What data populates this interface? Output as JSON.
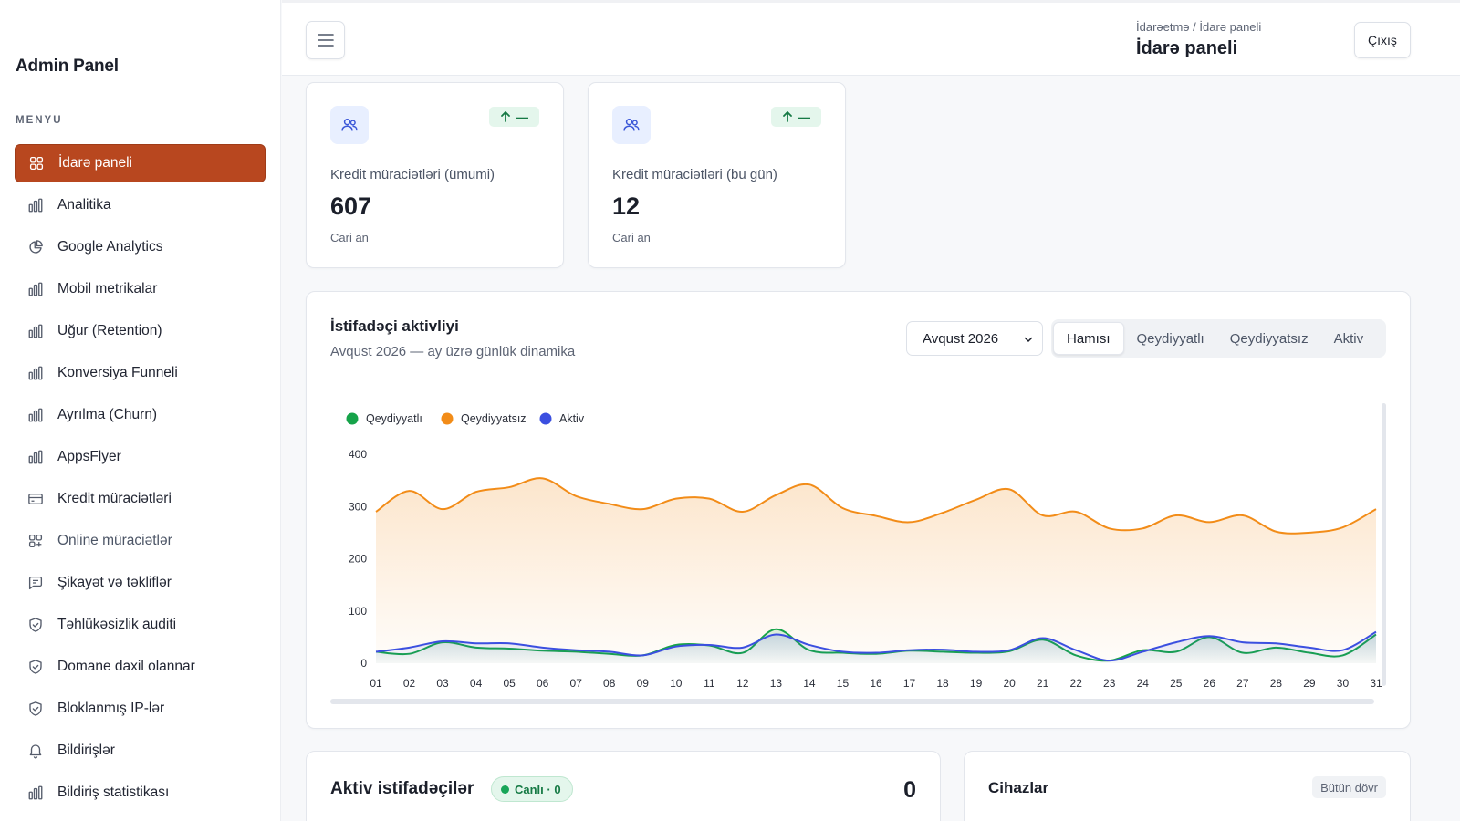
{
  "sidebar": {
    "brand": "Admin Panel",
    "menu_title": "MENYU",
    "items": [
      {
        "label": "İdarə paneli",
        "icon": "grid-icon"
      },
      {
        "label": "Analitika",
        "icon": "bar-chart-icon"
      },
      {
        "label": "Google Analytics",
        "icon": "pie-chart-icon"
      },
      {
        "label": "Mobil metrikalar",
        "icon": "bar-chart-icon"
      },
      {
        "label": "Uğur (Retention)",
        "icon": "bar-chart-icon"
      },
      {
        "label": "Konversiya Funneli",
        "icon": "bar-chart-icon"
      },
      {
        "label": "Ayrılma (Churn)",
        "icon": "bar-chart-icon"
      },
      {
        "label": "AppsFlyer",
        "icon": "bar-chart-icon"
      },
      {
        "label": "Kredit müraciətləri",
        "icon": "credit-card-icon"
      },
      {
        "label": "Online müraciətlər",
        "icon": "grid-plus-icon"
      },
      {
        "label": "Şikayət və təkliflər",
        "icon": "message-icon"
      },
      {
        "label": "Təhlükəsizlik auditi",
        "icon": "shield-check-icon"
      },
      {
        "label": "Domane daxil olannar",
        "icon": "shield-check-icon"
      },
      {
        "label": "Bloklanmış IP-lər",
        "icon": "shield-check-icon"
      },
      {
        "label": "Bildirişlər",
        "icon": "bell-icon"
      },
      {
        "label": "Bildiriş statistikası",
        "icon": "bar-chart-icon"
      }
    ]
  },
  "header": {
    "breadcrumb": "İdarəetmə / İdarə paneli",
    "title": "İdarə paneli",
    "logout_label": "Çıxış"
  },
  "stats": [
    {
      "label": "Kredit müraciətləri (ümumi)",
      "value": "607",
      "sub": "Cari an",
      "trend": "—"
    },
    {
      "label": "Kredit müraciətləri (bu gün)",
      "value": "12",
      "sub": "Cari an",
      "trend": "—"
    }
  ],
  "activity": {
    "title": "İstifadəçi aktivliyi",
    "subtitle": "Avqust 2026 — ay üzrə günlük dinamika",
    "month_value": "Avqust 2026",
    "segments": [
      "Hamısı",
      "Qeydiyyatlı",
      "Qeydiyyatsız",
      "Aktiv"
    ],
    "active_segment": 0
  },
  "chart_data": {
    "type": "area",
    "x": [
      "01",
      "02",
      "03",
      "04",
      "05",
      "06",
      "07",
      "08",
      "09",
      "10",
      "11",
      "12",
      "13",
      "14",
      "15",
      "16",
      "17",
      "18",
      "19",
      "20",
      "21",
      "22",
      "23",
      "24",
      "25",
      "26",
      "27",
      "28",
      "29",
      "30",
      "31"
    ],
    "ylim": [
      0,
      400
    ],
    "yticks": [
      0,
      100,
      200,
      300,
      400
    ],
    "legend_position": "top-left",
    "series": [
      {
        "name": "Qeydiyyatlı",
        "color": "#16a34a",
        "values": [
          22,
          18,
          40,
          30,
          28,
          24,
          22,
          18,
          15,
          35,
          34,
          20,
          65,
          25,
          20,
          18,
          24,
          22,
          20,
          23,
          45,
          15,
          5,
          25,
          22,
          50,
          20,
          30,
          20,
          15,
          55
        ]
      },
      {
        "name": "Qeydiyyatsız",
        "color": "#f28c18",
        "values": [
          290,
          330,
          295,
          328,
          337,
          354,
          320,
          305,
          295,
          315,
          315,
          290,
          322,
          342,
          297,
          282,
          270,
          288,
          313,
          333,
          283,
          290,
          258,
          258,
          283,
          270,
          283,
          252,
          250,
          260,
          295
        ]
      },
      {
        "name": "Aktiv",
        "color": "#3b4fe0",
        "values": [
          22,
          30,
          42,
          38,
          38,
          30,
          25,
          22,
          15,
          32,
          35,
          30,
          55,
          35,
          22,
          20,
          25,
          26,
          22,
          25,
          48,
          25,
          5,
          22,
          40,
          52,
          40,
          38,
          30,
          25,
          60
        ]
      }
    ]
  },
  "active_users": {
    "title": "Aktiv istifadəçilər",
    "badge": "Canlı · 0",
    "count": "0"
  },
  "devices": {
    "title": "Cihazlar",
    "badge": "Bütün dövr"
  }
}
